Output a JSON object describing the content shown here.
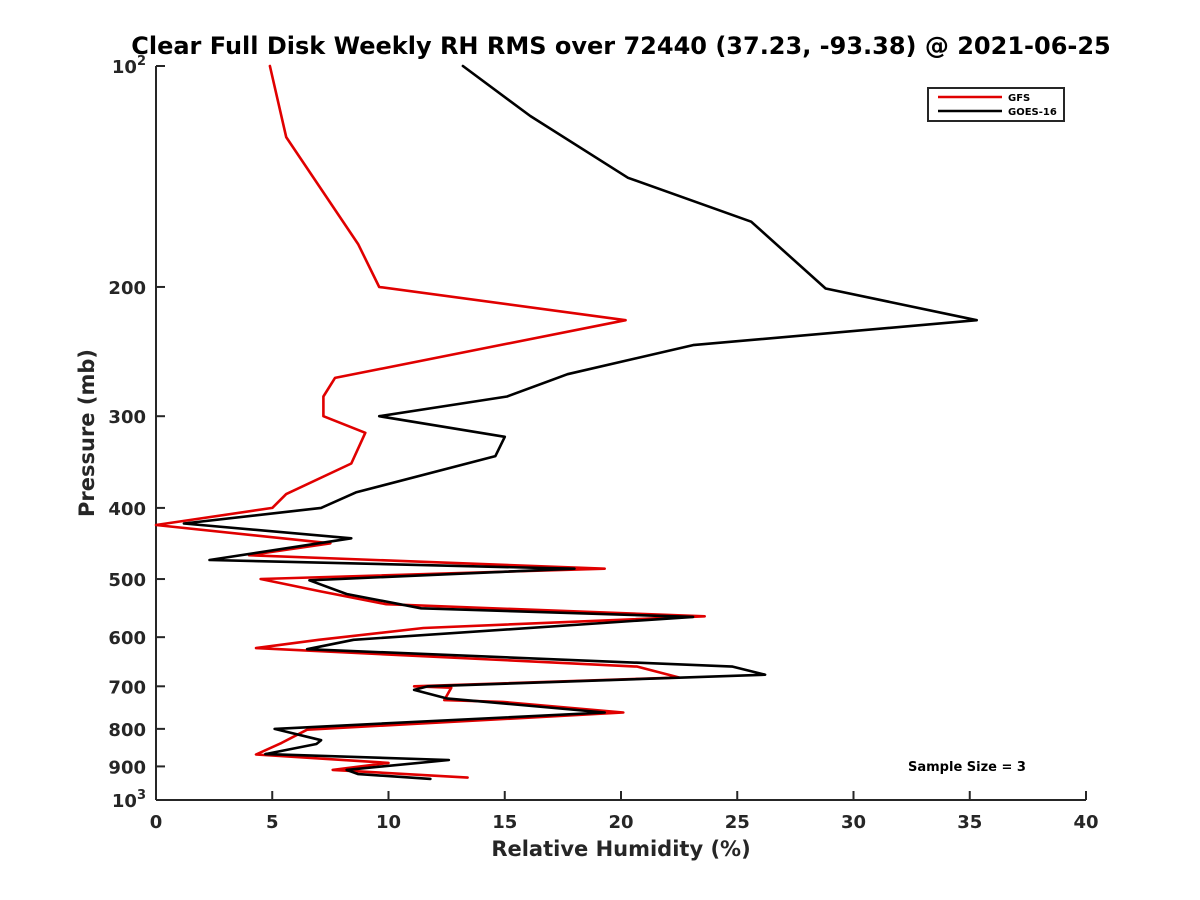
{
  "chart_data": {
    "type": "line",
    "title": "Clear Full Disk Weekly RH RMS over 72440 (37.23, -93.38) @ 2021-06-25",
    "xlabel": "Relative Humidity (%)",
    "ylabel": "Pressure (mb)",
    "xlim": [
      0,
      40
    ],
    "ylim": [
      100,
      1000
    ],
    "y_scale": "log",
    "y_reversed": true,
    "x_ticks": [
      0,
      5,
      10,
      15,
      20,
      25,
      30,
      35,
      40
    ],
    "x_tick_labels": [
      "0",
      "5",
      "10",
      "15",
      "20",
      "25",
      "30",
      "35",
      "40"
    ],
    "y_ticks": [
      {
        "value": 100,
        "base": "10",
        "exp": "2"
      },
      {
        "value": 200,
        "label": "200"
      },
      {
        "value": 300,
        "label": "300"
      },
      {
        "value": 400,
        "label": "400"
      },
      {
        "value": 500,
        "label": "500"
      },
      {
        "value": 600,
        "label": "600"
      },
      {
        "value": 700,
        "label": "700"
      },
      {
        "value": 800,
        "label": "800"
      },
      {
        "value": 900,
        "label": "900"
      },
      {
        "value": 1000,
        "base": "10",
        "exp": "3"
      }
    ],
    "grid": false,
    "legend_position": "top-right",
    "annotation": "Sample Size = 3",
    "series": [
      {
        "name": "GFS",
        "color": "#e00000",
        "points": [
          [
            4.9,
            100
          ],
          [
            5.6,
            125
          ],
          [
            8.7,
            175
          ],
          [
            9.6,
            200
          ],
          [
            20.2,
            222
          ],
          [
            7.7,
            266
          ],
          [
            7.2,
            282
          ],
          [
            7.2,
            300
          ],
          [
            9.0,
            316
          ],
          [
            8.4,
            348
          ],
          [
            5.6,
            383
          ],
          [
            5.0,
            400
          ],
          [
            0.0,
            422
          ],
          [
            7.5,
            447
          ],
          [
            4.0,
            464
          ],
          [
            19.3,
            484
          ],
          [
            4.5,
            500
          ],
          [
            7.1,
            520
          ],
          [
            9.9,
            541
          ],
          [
            23.6,
            562
          ],
          [
            11.5,
            583
          ],
          [
            7.0,
            605
          ],
          [
            4.3,
            621
          ],
          [
            20.7,
            658
          ],
          [
            22.5,
            681
          ],
          [
            11.1,
            700
          ],
          [
            12.7,
            703
          ],
          [
            12.4,
            731
          ],
          [
            14.9,
            735
          ],
          [
            20.1,
            760
          ],
          [
            6.5,
            802
          ],
          [
            5.4,
            836
          ],
          [
            4.3,
            867
          ],
          [
            10.0,
            890
          ],
          [
            7.6,
            910
          ],
          [
            13.4,
            932
          ]
        ]
      },
      {
        "name": "GOES-16",
        "color": "#000000",
        "points": [
          [
            13.2,
            100
          ],
          [
            16.1,
            117
          ],
          [
            20.3,
            142
          ],
          [
            25.6,
            163
          ],
          [
            28.8,
            201
          ],
          [
            35.3,
            222
          ],
          [
            23.1,
            240
          ],
          [
            17.7,
            263
          ],
          [
            15.1,
            282
          ],
          [
            9.6,
            300
          ],
          [
            15.0,
            320
          ],
          [
            14.6,
            340
          ],
          [
            8.6,
            381
          ],
          [
            7.1,
            400
          ],
          [
            1.2,
            420
          ],
          [
            8.4,
            440
          ],
          [
            2.3,
            471
          ],
          [
            18.0,
            484
          ],
          [
            6.6,
            502
          ],
          [
            8.2,
            524
          ],
          [
            11.4,
            548
          ],
          [
            23.1,
            563
          ],
          [
            8.5,
            605
          ],
          [
            6.5,
            623
          ],
          [
            24.8,
            658
          ],
          [
            26.2,
            675
          ],
          [
            11.7,
            700
          ],
          [
            11.1,
            708
          ],
          [
            12.5,
            727
          ],
          [
            19.3,
            760
          ],
          [
            5.1,
            800
          ],
          [
            7.1,
            829
          ],
          [
            6.9,
            839
          ],
          [
            4.7,
            866
          ],
          [
            12.6,
            882
          ],
          [
            8.2,
            910
          ],
          [
            8.7,
            922
          ],
          [
            11.8,
            936
          ]
        ]
      }
    ]
  }
}
